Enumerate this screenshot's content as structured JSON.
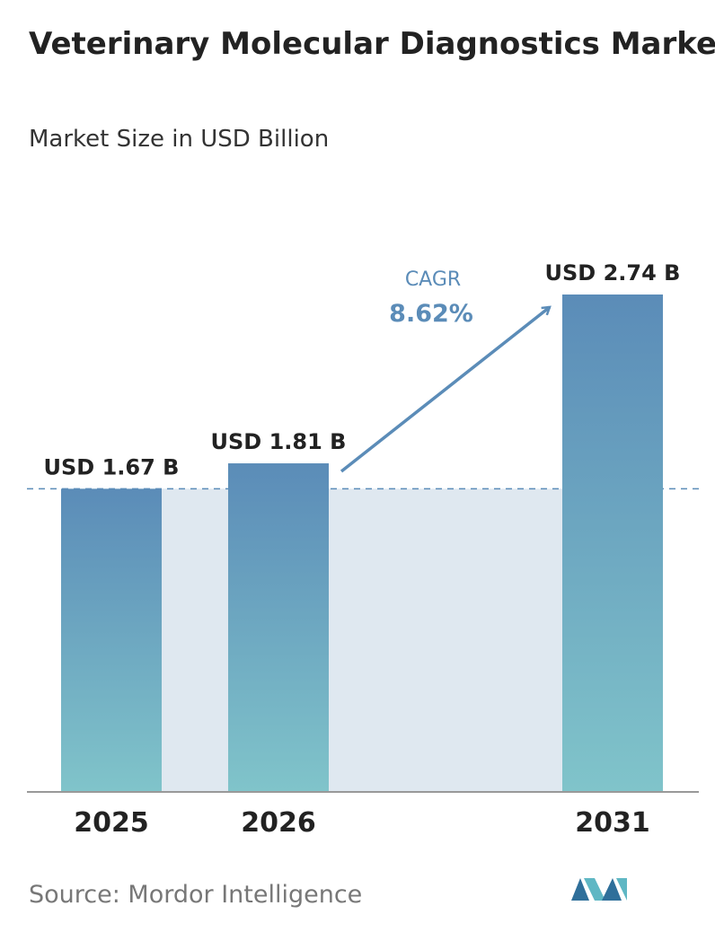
{
  "chart_data": {
    "type": "bar",
    "title": "Veterinary Molecular Diagnostics Market",
    "subtitle": "Market Size in USD Billion",
    "categories": [
      "2025",
      "2026",
      "2031"
    ],
    "values": [
      1.67,
      1.81,
      2.74
    ],
    "value_labels": [
      "USD 1.67 B",
      "USD 1.81 B",
      "USD 2.74 B"
    ],
    "annotation": {
      "label": "CAGR",
      "value": "8.62%"
    },
    "source": "Source: Mordor Intelligence"
  }
}
